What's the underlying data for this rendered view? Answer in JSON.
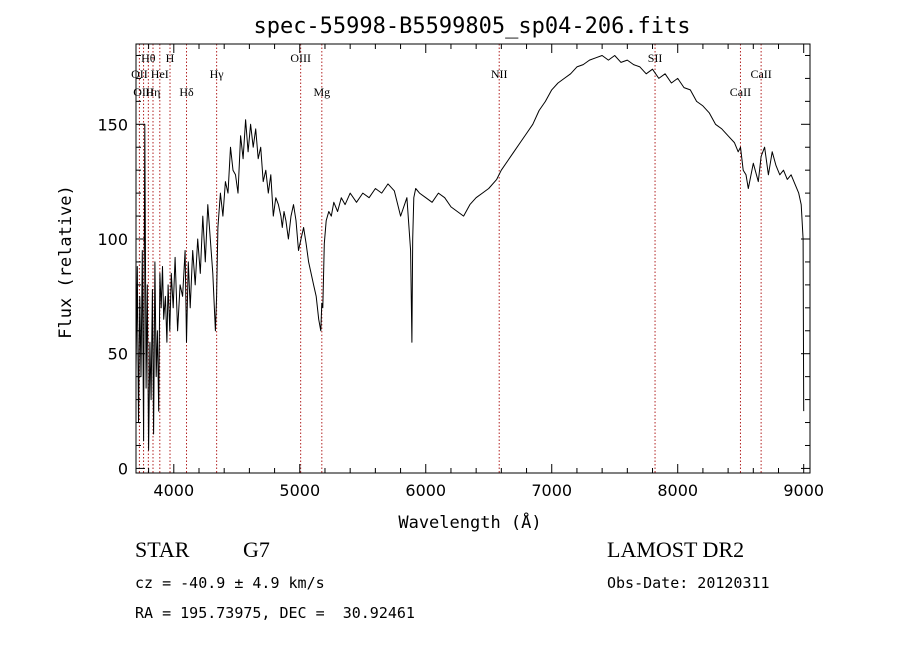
{
  "chart_data": {
    "type": "line",
    "title": "spec-55998-B5599805_sp04-206.fits",
    "xlabel": "Wavelength (Å)",
    "ylabel": "Flux (relative)",
    "xlim": [
      3700,
      9050
    ],
    "ylim": [
      -2,
      185
    ],
    "xticks": [
      4000,
      5000,
      6000,
      7000,
      8000,
      9000
    ],
    "yticks": [
      0,
      50,
      100,
      150
    ],
    "grid": false,
    "series": [
      {
        "x": [
          3700,
          3710,
          3720,
          3730,
          3740,
          3750,
          3760,
          3770,
          3780,
          3790,
          3800,
          3810,
          3820,
          3830,
          3840,
          3850,
          3860,
          3870,
          3880,
          3890,
          3900,
          3910,
          3920,
          3933,
          3945,
          3955,
          3968,
          3980,
          3995,
          4010,
          4030,
          4050,
          4070,
          4090,
          4101,
          4115,
          4130,
          4150,
          4170,
          4190,
          4210,
          4230,
          4250,
          4270,
          4290,
          4310,
          4330,
          4340,
          4350,
          4370,
          4390,
          4410,
          4430,
          4450,
          4470,
          4490,
          4510,
          4530,
          4550,
          4570,
          4590,
          4610,
          4630,
          4650,
          4670,
          4690,
          4710,
          4730,
          4750,
          4770,
          4790,
          4810,
          4830,
          4850,
          4861,
          4875,
          4890,
          4910,
          4930,
          4950,
          4970,
          4990,
          5010,
          5030,
          5050,
          5070,
          5090,
          5110,
          5130,
          5150,
          5167,
          5175,
          5183,
          5195,
          5210,
          5230,
          5250,
          5270,
          5300,
          5330,
          5360,
          5400,
          5450,
          5500,
          5550,
          5600,
          5650,
          5700,
          5750,
          5800,
          5850,
          5880,
          5890,
          5896,
          5905,
          5920,
          5950,
          6000,
          6050,
          6100,
          6150,
          6200,
          6250,
          6300,
          6350,
          6400,
          6450,
          6500,
          6563,
          6600,
          6650,
          6700,
          6750,
          6800,
          6850,
          6900,
          6950,
          7000,
          7050,
          7100,
          7150,
          7200,
          7250,
          7300,
          7350,
          7400,
          7450,
          7500,
          7550,
          7600,
          7650,
          7700,
          7750,
          7800,
          7850,
          7900,
          7950,
          8000,
          8050,
          8100,
          8150,
          8200,
          8250,
          8300,
          8350,
          8400,
          8450,
          8480,
          8498,
          8520,
          8542,
          8560,
          8600,
          8640,
          8662,
          8690,
          8720,
          8750,
          8780,
          8810,
          8840,
          8870,
          8900,
          8930,
          8960,
          8980,
          8995,
          9000
        ],
        "y": [
          42,
          88,
          20,
          75,
          40,
          95,
          12,
          150,
          35,
          80,
          8,
          55,
          30,
          78,
          15,
          90,
          40,
          60,
          25,
          85,
          70,
          88,
          65,
          75,
          55,
          80,
          60,
          85,
          70,
          92,
          60,
          80,
          75,
          95,
          55,
          90,
          70,
          95,
          80,
          100,
          85,
          110,
          90,
          115,
          100,
          85,
          60,
          75,
          105,
          120,
          110,
          125,
          120,
          140,
          130,
          128,
          120,
          145,
          135,
          152,
          138,
          150,
          140,
          148,
          135,
          140,
          125,
          130,
          120,
          128,
          110,
          118,
          115,
          110,
          105,
          112,
          108,
          100,
          110,
          115,
          108,
          95,
          100,
          105,
          98,
          90,
          85,
          80,
          75,
          65,
          60,
          72,
          70,
          98,
          108,
          112,
          110,
          116,
          112,
          118,
          115,
          120,
          116,
          120,
          118,
          122,
          120,
          124,
          121,
          110,
          118,
          95,
          55,
          100,
          118,
          122,
          120,
          118,
          116,
          120,
          118,
          114,
          112,
          110,
          115,
          118,
          120,
          122,
          126,
          130,
          134,
          138,
          142,
          146,
          150,
          156,
          160,
          165,
          168,
          170,
          172,
          175,
          176,
          178,
          179,
          180,
          178,
          180,
          177,
          178,
          176,
          175,
          172,
          174,
          170,
          172,
          168,
          170,
          166,
          165,
          160,
          158,
          155,
          150,
          148,
          145,
          142,
          138,
          140,
          130,
          128,
          122,
          133,
          125,
          136,
          140,
          128,
          138,
          132,
          128,
          130,
          126,
          128,
          124,
          120,
          115,
          100,
          25
        ]
      }
    ],
    "annotations": [
      {
        "text": "Hθ",
        "x": 3798,
        "row": 1
      },
      {
        "text": "H",
        "x": 3970,
        "row": 1
      },
      {
        "text": "OII",
        "x": 3727,
        "row": 2
      },
      {
        "text": "HeI",
        "x": 3889,
        "row": 2
      },
      {
        "text": "Hγ",
        "x": 4340,
        "row": 2
      },
      {
        "text": "OIII",
        "x": 5007,
        "row": 1
      },
      {
        "text": "OIII",
        "x": 3760,
        "row": 3
      },
      {
        "text": "Hη",
        "x": 3835,
        "row": 3
      },
      {
        "text": "Hδ",
        "x": 4101,
        "row": 3
      },
      {
        "text": "Mg",
        "x": 5175,
        "row": 3
      },
      {
        "text": "NII",
        "x": 6583,
        "row": 2
      },
      {
        "text": "SII",
        "x": 7820,
        "row": 1
      },
      {
        "text": "CaII",
        "x": 8498,
        "row": 3
      },
      {
        "text": "CaII",
        "x": 8662,
        "row": 2
      }
    ],
    "line_markers": [
      3727,
      3760,
      3798,
      3835,
      3889,
      3970,
      4101,
      4340,
      5007,
      5175,
      6583,
      7820,
      8498,
      8662
    ]
  },
  "info": {
    "object_class": "STAR",
    "subclass": "G7",
    "survey": "LAMOST DR2",
    "redshift": "cz = -40.9 ± 4.9 km/s",
    "obs_date": "Obs-Date: 20120311",
    "coords": "RA = 195.73975, DEC =  30.92461"
  },
  "colors": {
    "spectrum": "#000000",
    "marker": "#b22222",
    "axis": "#000000"
  }
}
